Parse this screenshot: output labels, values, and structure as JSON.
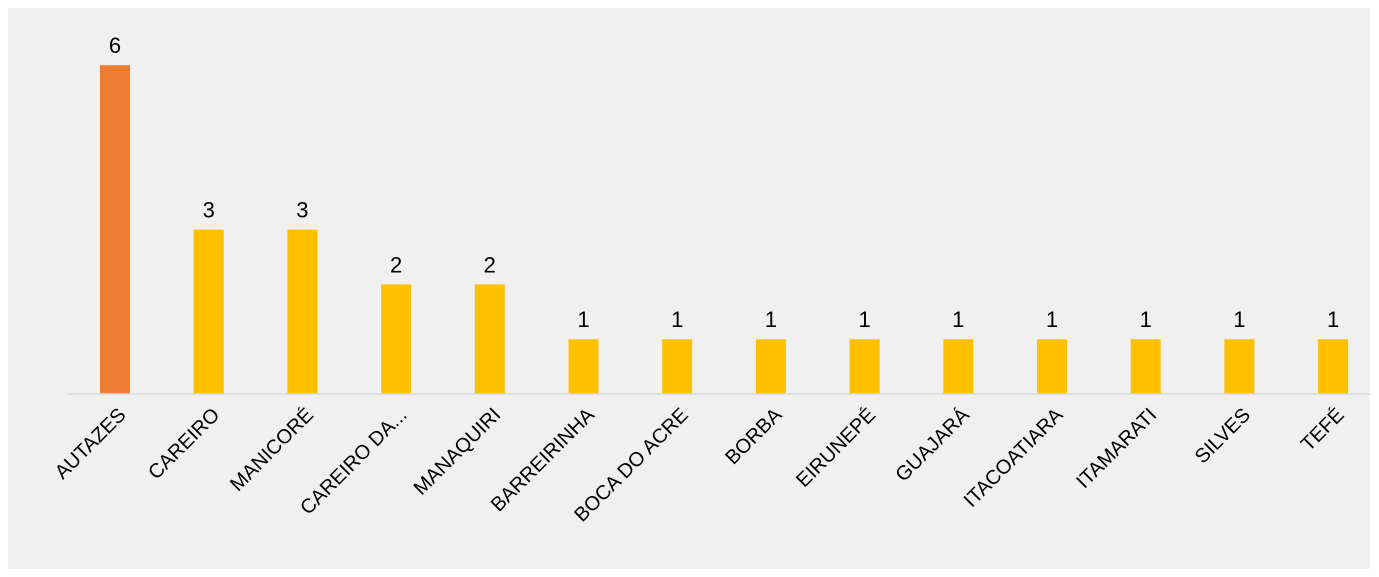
{
  "chart_data": {
    "type": "bar",
    "categories": [
      "AUTAZES",
      "CAREIRO",
      "MANICORÉ",
      "CAREIRO DA...",
      "MANAQUIRI",
      "BARREIRINHA",
      "BOCA DO ACRE",
      "BORBA",
      "EIRUNEPÉ",
      "GUAJARÁ",
      "ITACOATIARA",
      "ITAMARATI",
      "SILVES",
      "TEFÉ"
    ],
    "series": [
      {
        "values": [
          6,
          3,
          3,
          2,
          2,
          1,
          1,
          1,
          1,
          1,
          1,
          1,
          1,
          1
        ]
      }
    ],
    "bar_colors": [
      "#ed7d31",
      "#ffc000",
      "#ffc000",
      "#ffc000",
      "#ffc000",
      "#ffc000",
      "#ffc000",
      "#ffc000",
      "#ffc000",
      "#ffc000",
      "#ffc000",
      "#ffc000",
      "#ffc000",
      "#ffc000"
    ],
    "ylim": [
      0,
      6
    ],
    "grid": false,
    "legend": "none",
    "data_labels": true,
    "tick_label_rotation": -45
  },
  "colors": {
    "background": "#f0f0f0",
    "axis": "#d9d9d9",
    "highlight_bar": "#ed7d31",
    "bar": "#ffc000"
  }
}
